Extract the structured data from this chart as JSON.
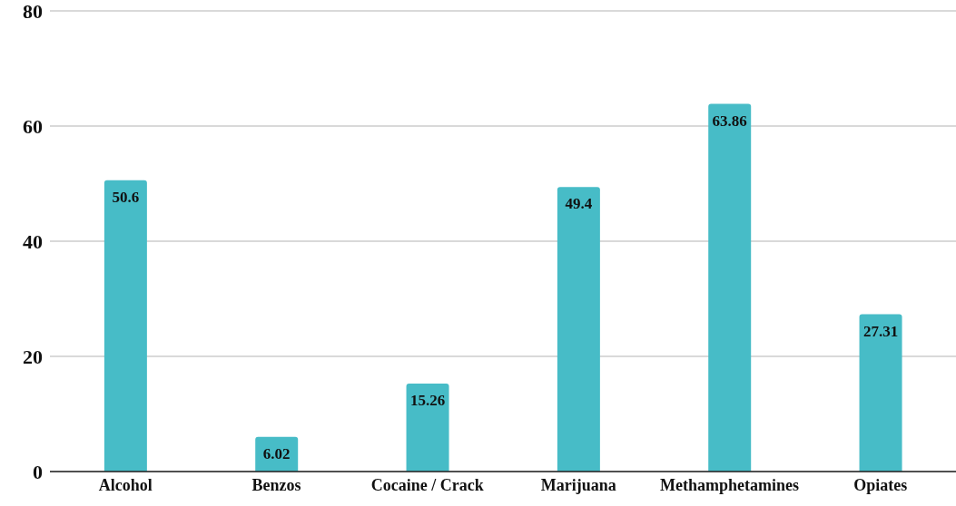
{
  "chart_data": {
    "type": "bar",
    "categories": [
      "Alcohol",
      "Benzos",
      "Cocaine / Crack",
      "Marijuana",
      "Methamphetamines",
      "Opiates"
    ],
    "values": [
      50.6,
      6.02,
      15.26,
      49.4,
      63.86,
      27.31
    ],
    "color": "#47bcc7",
    "ylim": [
      0,
      80
    ],
    "yticks": [
      0,
      20,
      40,
      60,
      80
    ],
    "grid": "y",
    "data_labels": true,
    "legend": false
  }
}
